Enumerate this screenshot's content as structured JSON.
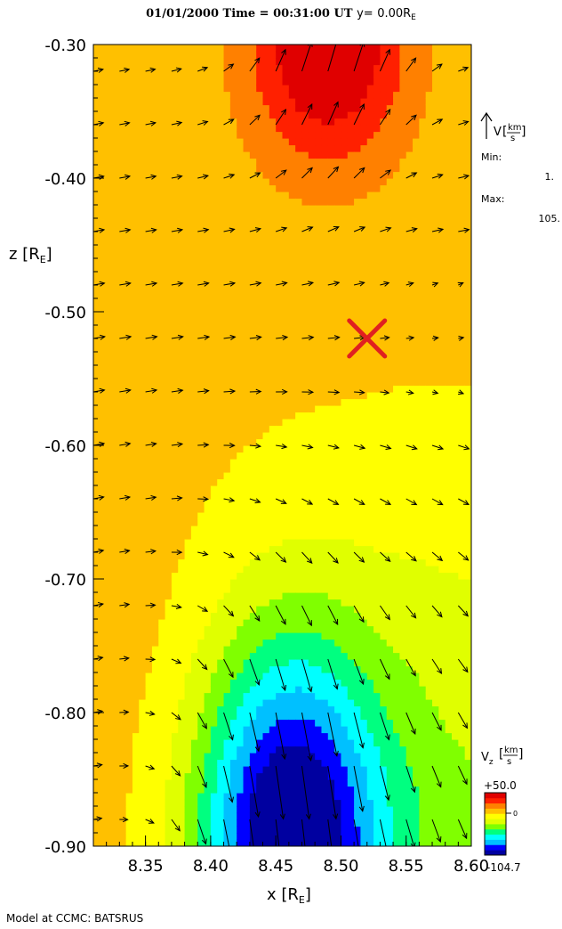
{
  "chart_data": {
    "type": "heatmap",
    "title": {
      "date": "01/01/2000",
      "time_label": "Time =",
      "time": "00:31:00 UT",
      "slice_label": "y=",
      "slice_value": "0.00R",
      "slice_unit_sub": "E"
    },
    "xlabel": "x [R",
    "xlabel_sub": "E",
    "xlabel_close": "]",
    "ylabel": "z [R",
    "ylabel_sub": "E",
    "ylabel_close": "]",
    "xlim": [
      8.31,
      8.6
    ],
    "ylim": [
      -0.9,
      -0.3
    ],
    "x_ticks": [
      "8.35",
      "8.40",
      "8.45",
      "8.50",
      "8.55",
      "8.60"
    ],
    "y_ticks": [
      "-0.30",
      "-0.40",
      "-0.50",
      "-0.60",
      "-0.70",
      "-0.80",
      "-0.90"
    ],
    "vector_legend": {
      "symbol": "V",
      "unit_num": "km",
      "unit_den": "s",
      "min_label": "Min:",
      "min_value": "1.",
      "max_label": "Max:",
      "max_value": "105."
    },
    "colorbar": {
      "label": "V",
      "label_sub": "z",
      "unit_num": "km",
      "unit_den": "s",
      "max_label": "+50.0",
      "min_label": "-104.7",
      "zero_label": "0",
      "max": 50.0,
      "min": -104.7,
      "colors": [
        "#0000a0",
        "#0000ff",
        "#00c0ff",
        "#00ffff",
        "#00ff80",
        "#80ff00",
        "#e0ff00",
        "#ffff00",
        "#ffc000",
        "#ff8000",
        "#ff2000",
        "#e00000"
      ]
    },
    "marker": {
      "symbol": "X",
      "x": 8.52,
      "z": -0.52,
      "color": "#e02020"
    },
    "vector_grid": {
      "x": [
        8.31,
        8.33,
        8.35,
        8.37,
        8.39,
        8.41,
        8.43,
        8.45,
        8.47,
        8.49,
        8.51,
        8.53,
        8.55,
        8.57,
        8.59
      ],
      "z": [
        -0.32,
        -0.36,
        -0.4,
        -0.44,
        -0.48,
        -0.52,
        -0.56,
        -0.6,
        -0.64,
        -0.68,
        -0.72,
        -0.76,
        -0.8,
        -0.84,
        -0.88
      ]
    },
    "field_description": "Vz ranges from about +50 km/s near top centre (x~8.49, z~-0.30) to about -105 km/s near bottom centre (x~8.46, z~-0.90)"
  },
  "footer": {
    "credit": "Model at CCMC: BATSRUS"
  }
}
